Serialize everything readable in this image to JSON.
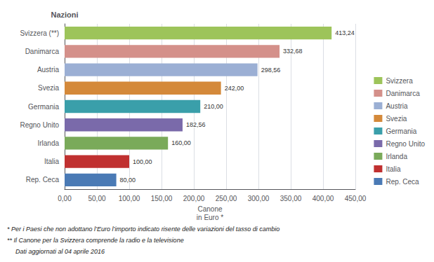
{
  "chart_data": {
    "type": "bar",
    "orientation": "horizontal",
    "categories": [
      "Svizzera (**)",
      "Danimarca",
      "Austria",
      "Svezia",
      "Germania",
      "Regno Unito",
      "Irlanda",
      "Italia",
      "Rep. Ceca"
    ],
    "series": [
      {
        "name": "Svizzera",
        "color": "#9dc45a",
        "values": [
          413.24,
          null,
          null,
          null,
          null,
          null,
          null,
          null,
          null
        ],
        "value_labels": [
          "413,24",
          null,
          null,
          null,
          null,
          null,
          null,
          null,
          null
        ]
      },
      {
        "name": "Danimarca",
        "color": "#d4908a",
        "values": [
          null,
          332.68,
          null,
          null,
          null,
          null,
          null,
          null,
          null
        ],
        "value_labels": [
          null,
          "332,68",
          null,
          null,
          null,
          null,
          null,
          null,
          null
        ]
      },
      {
        "name": "Austria",
        "color": "#9bafd4",
        "values": [
          null,
          null,
          298.56,
          null,
          null,
          null,
          null,
          null,
          null
        ],
        "value_labels": [
          null,
          null,
          "298,56",
          null,
          null,
          null,
          null,
          null,
          null
        ]
      },
      {
        "name": "Svezia",
        "color": "#d4893a",
        "values": [
          null,
          null,
          null,
          242.0,
          null,
          null,
          null,
          null,
          null
        ],
        "value_labels": [
          null,
          null,
          null,
          "242,00",
          null,
          null,
          null,
          null,
          null
        ]
      },
      {
        "name": "Germania",
        "color": "#3a9faa",
        "values": [
          null,
          null,
          null,
          null,
          210.0,
          null,
          null,
          null,
          null
        ],
        "value_labels": [
          null,
          null,
          null,
          null,
          "210,00",
          null,
          null,
          null,
          null
        ]
      },
      {
        "name": "Regno Unito",
        "color": "#7a6aaa",
        "values": [
          null,
          null,
          null,
          null,
          null,
          182.56,
          null,
          null,
          null
        ],
        "value_labels": [
          null,
          null,
          null,
          null,
          null,
          "182,56",
          null,
          null,
          null
        ]
      },
      {
        "name": "Irlanda",
        "color": "#7aaa5a",
        "values": [
          null,
          null,
          null,
          null,
          null,
          null,
          160.0,
          null,
          null
        ],
        "value_labels": [
          null,
          null,
          null,
          null,
          null,
          null,
          "160,00",
          null,
          null
        ]
      },
      {
        "name": "Italia",
        "color": "#c03030",
        "values": [
          null,
          null,
          null,
          null,
          null,
          null,
          null,
          100.0,
          null
        ],
        "value_labels": [
          null,
          null,
          null,
          null,
          null,
          null,
          null,
          "100,00",
          null
        ]
      },
      {
        "name": "Rep. Ceca",
        "color": "#4a7ab5",
        "values": [
          null,
          null,
          null,
          null,
          null,
          null,
          null,
          null,
          80.0
        ],
        "value_labels": [
          null,
          null,
          null,
          null,
          null,
          null,
          null,
          null,
          "80,00"
        ]
      }
    ],
    "xlim": [
      0,
      450
    ],
    "xticks": [
      {
        "value": 0,
        "label": "0,00"
      },
      {
        "value": 50,
        "label": "50,00"
      },
      {
        "value": 100,
        "label": "100,00"
      },
      {
        "value": 150,
        "label": "150,00"
      },
      {
        "value": 200,
        "label": "200,00"
      },
      {
        "value": 250,
        "label": "250,00"
      },
      {
        "value": 300,
        "label": "300,00"
      },
      {
        "value": 350,
        "label": "350,00"
      },
      {
        "value": 400,
        "label": "400,00"
      },
      {
        "value": 450,
        "label": "450,00"
      }
    ],
    "xlabel": "Canone\nin Euro *",
    "ylabel": "Nazioni",
    "grid": true,
    "legend": "right",
    "data_labels": true,
    "annotations": [
      "* Per i Paesi che non adottano l’Euro l’importo indicato risente delle variazioni del tasso di cambio",
      "** Il Canone per la Svizzera comprende la radio e la televisione",
      "Dati aggiornati al 04 aprile 2016"
    ]
  }
}
